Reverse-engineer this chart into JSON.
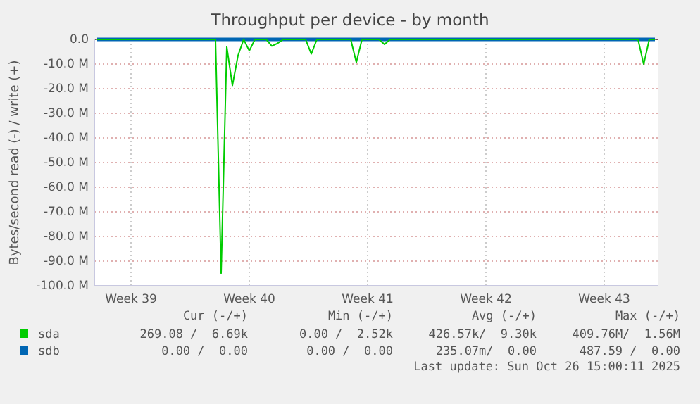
{
  "chart_data": {
    "type": "line",
    "title": "Throughput per device - by month",
    "ylabel": "Bytes/second read (-) / write (+)",
    "categories": [
      null,
      null,
      null,
      null,
      null,
      null,
      "Week 39",
      null,
      null,
      null,
      null,
      null,
      null,
      null,
      null,
      null,
      null,
      null,
      null,
      null,
      null,
      null,
      null,
      null,
      null,
      null,
      null,
      "Week 40",
      null,
      null,
      null,
      null,
      null,
      null,
      null,
      null,
      null,
      null,
      null,
      null,
      null,
      null,
      null,
      null,
      null,
      null,
      null,
      null,
      "Week 41",
      null,
      null,
      null,
      null,
      null,
      null,
      null,
      null,
      null,
      null,
      null,
      null,
      null,
      null,
      null,
      null,
      null,
      null,
      null,
      null,
      "Week 42",
      null,
      null,
      null,
      null,
      null,
      null,
      null,
      null,
      null,
      null,
      null,
      null,
      null,
      null,
      null,
      null,
      null,
      null,
      null,
      null,
      "Week 43",
      null,
      null,
      null,
      null,
      null,
      null,
      null,
      null,
      null
    ],
    "ylim": [
      -100,
      0
    ],
    "yticks": [
      {
        "value": 0,
        "label": "0.0"
      },
      {
        "value": -10,
        "label": "-10.0 M"
      },
      {
        "value": -20,
        "label": "-20.0 M"
      },
      {
        "value": -30,
        "label": "-30.0 M"
      },
      {
        "value": -40,
        "label": "-40.0 M"
      },
      {
        "value": -50,
        "label": "-50.0 M"
      },
      {
        "value": -60,
        "label": "-60.0 M"
      },
      {
        "value": -70,
        "label": "-70.0 M"
      },
      {
        "value": -80,
        "label": "-80.0 M"
      },
      {
        "value": -90,
        "label": "-90.0 M"
      },
      {
        "value": -100,
        "label": "-100.0 M"
      }
    ],
    "grid": true,
    "legend": "bottom",
    "series": [
      {
        "name": "sda",
        "color": "#00cc00",
        "values": [
          0,
          0,
          0,
          0,
          0,
          0,
          0,
          0,
          0,
          0,
          0,
          0,
          0,
          0,
          0,
          0,
          0,
          0,
          0,
          0,
          0,
          0,
          -94.9,
          -3,
          -18.7,
          -6.5,
          0,
          -4.6,
          0,
          0,
          0,
          -2.7,
          -1.6,
          0,
          0,
          0,
          0,
          0,
          -5.9,
          0,
          0,
          0,
          0,
          0,
          0,
          0,
          -9.3,
          0,
          0,
          0,
          0,
          -2,
          0,
          0,
          0,
          0,
          0,
          0,
          0,
          0,
          0,
          0,
          0,
          0,
          0,
          0,
          0,
          0,
          0,
          0,
          0,
          0,
          0,
          0,
          0,
          0,
          0,
          0,
          0,
          0,
          0,
          0,
          0,
          0,
          0,
          0,
          0,
          0,
          0,
          0,
          0,
          0,
          0,
          0,
          0,
          0,
          0,
          -10.1,
          0,
          0
        ]
      },
      {
        "name": "sdb",
        "color": "#0066b3",
        "values": [
          0,
          0,
          0,
          0,
          0,
          0,
          0,
          0,
          0,
          0,
          0,
          0,
          0,
          0,
          0,
          0,
          0,
          0,
          0,
          0,
          0,
          0,
          0,
          0,
          0,
          0,
          0,
          0,
          0,
          0,
          0,
          0,
          0,
          0,
          0,
          0,
          0,
          0,
          0,
          0,
          0,
          0,
          0,
          0,
          0,
          0,
          0,
          0,
          0,
          0,
          0,
          0,
          0,
          0,
          0,
          0,
          0,
          0,
          0,
          0,
          0,
          0,
          0,
          0,
          0,
          0,
          0,
          0,
          0,
          0,
          0,
          0,
          0,
          0,
          0,
          0,
          0,
          0,
          0,
          0,
          0,
          0,
          0,
          0,
          0,
          0,
          0,
          0,
          0,
          0,
          0,
          0,
          0,
          0,
          0,
          0,
          0,
          0,
          0,
          0
        ]
      }
    ],
    "annotations": [
      "Cur (-/+)",
      "Min (-/+)",
      "Avg (-/+)",
      "Max (-/+)",
      "269.08 /  6.69k",
      "0.00 /  2.52k",
      "426.57k/  9.30k",
      "409.76M/  1.56M",
      "0.00 /  0.00",
      "0.00 /  0.00",
      "235.07m/  0.00",
      "487.59 /  0.00",
      "Last update: Sun Oct 26 15:00:11 2025"
    ]
  }
}
